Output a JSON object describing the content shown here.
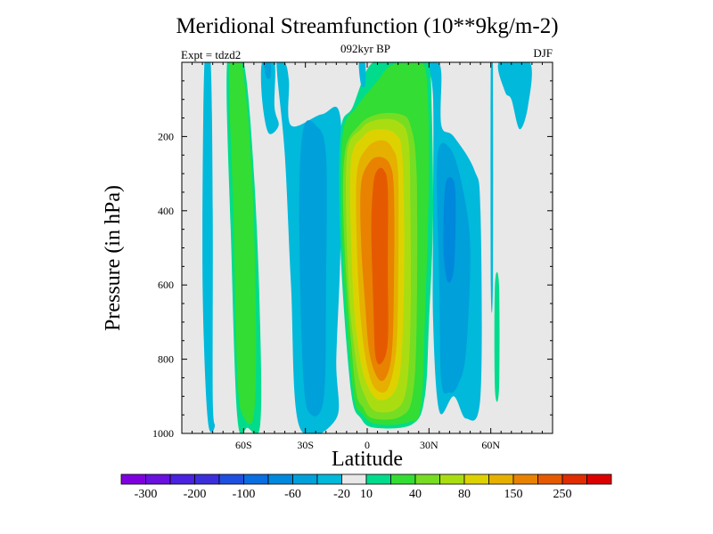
{
  "chart_data": {
    "type": "heatmap",
    "title": "Meridional Streamfunction (10**9kg/m-2)",
    "subtitle": "092kyr BP",
    "left_label": "Expt = tdzd2",
    "right_label": "DJF",
    "xlabel": "Latitude",
    "ylabel": "Pressure (in hPa)",
    "x_range": [
      -90,
      90
    ],
    "y_range": [
      0,
      1000
    ],
    "x_ticks": [
      {
        "value": -60,
        "label": "60S"
      },
      {
        "value": -30,
        "label": "30S"
      },
      {
        "value": 0,
        "label": "0"
      },
      {
        "value": 30,
        "label": "30N"
      },
      {
        "value": 60,
        "label": "60N"
      }
    ],
    "y_ticks": [
      {
        "value": 200,
        "label": "200"
      },
      {
        "value": 400,
        "label": "400"
      },
      {
        "value": 600,
        "label": "600"
      },
      {
        "value": 800,
        "label": "800"
      },
      {
        "value": 1000,
        "label": "1000"
      }
    ],
    "colorbar": {
      "colors": [
        "#7F00DF",
        "#6A11DF",
        "#4A22DF",
        "#3B2FDC",
        "#1F4FDF",
        "#0A6DE0",
        "#0088DD",
        "#00A0DA",
        "#00B9DB",
        "#E8E8E8",
        "#00DC8C",
        "#33DD33",
        "#77DD22",
        "#AADD11",
        "#DDD200",
        "#E6B000",
        "#E88200",
        "#E55A00",
        "#E02C00",
        "#DD0000"
      ],
      "labels": [
        {
          "after": 1,
          "text": "-300"
        },
        {
          "after": 3,
          "text": "-200"
        },
        {
          "after": 5,
          "text": "-100"
        },
        {
          "after": 7,
          "text": "-60"
        },
        {
          "after": 9,
          "text": "-20"
        },
        {
          "after": 10,
          "text": "10"
        },
        {
          "after": 12,
          "text": "40"
        },
        {
          "after": 14,
          "text": "80"
        },
        {
          "after": 16,
          "text": "150"
        },
        {
          "after": 18,
          "text": "250"
        }
      ]
    },
    "regions": [
      {
        "name": "background",
        "level": "-20 to 10",
        "color": "#E8E8E8",
        "lat": [
          -90,
          90
        ],
        "p": [
          0,
          1000
        ]
      },
      {
        "name": "cell-60S-westcolumn",
        "level": "-20 to -40",
        "color": "#00B9DB",
        "outline": [
          [
            -79,
            0
          ],
          [
            -76,
            0
          ],
          [
            -75,
            400
          ],
          [
            -75,
            900
          ],
          [
            -74,
            980
          ],
          [
            -77,
            980
          ],
          [
            -79,
            800
          ],
          [
            -80,
            500
          ]
        ]
      },
      {
        "name": "cell-55S-column",
        "level": "10 to 40",
        "color": "#00DC8C",
        "outline": [
          [
            -68,
            0
          ],
          [
            -60,
            0
          ],
          [
            -55,
            300
          ],
          [
            -52,
            700
          ],
          [
            -52,
            980
          ],
          [
            -58,
            985
          ],
          [
            -63,
            960
          ],
          [
            -66,
            500
          ]
        ]
      },
      {
        "name": "cell-55S-core",
        "level": "40 to 60",
        "color": "#33DD33",
        "outline": [
          [
            -67,
            0
          ],
          [
            -61,
            0
          ],
          [
            -56,
            300
          ],
          [
            -54,
            700
          ],
          [
            -55,
            950
          ],
          [
            -60,
            955
          ],
          [
            -63,
            850
          ],
          [
            -65,
            400
          ]
        ]
      },
      {
        "name": "cell-45S-column",
        "level": "-20 to -40",
        "color": "#00B9DB",
        "outline": [
          [
            -44,
            0
          ],
          [
            -40,
            0
          ],
          [
            -38,
            50
          ],
          [
            -37,
            170
          ],
          [
            -22,
            140
          ],
          [
            -13,
            150
          ],
          [
            -13,
            500
          ],
          [
            -15,
            800
          ],
          [
            -15,
            960
          ],
          [
            -33,
            980
          ],
          [
            -37,
            600
          ],
          [
            -40,
            250
          ]
        ]
      },
      {
        "name": "cell-35S-core",
        "level": "-40 to -60",
        "color": "#00A0DA",
        "outline": [
          [
            -31,
            180
          ],
          [
            -25,
            170
          ],
          [
            -20,
            250
          ],
          [
            -20,
            600
          ],
          [
            -21,
            900
          ],
          [
            -27,
            950
          ],
          [
            -31,
            850
          ],
          [
            -33,
            400
          ]
        ]
      },
      {
        "name": "cell-equator-outer",
        "level": "10 to 40",
        "color": "#00DC8C",
        "outline": [
          [
            -13,
            190
          ],
          [
            -7,
            120
          ],
          [
            1,
            10
          ],
          [
            10,
            0
          ],
          [
            30,
            0
          ],
          [
            31,
            50
          ],
          [
            32,
            400
          ],
          [
            30,
            700
          ],
          [
            28,
            900
          ],
          [
            22,
            975
          ],
          [
            4,
            985
          ],
          [
            -3,
            960
          ],
          [
            -8,
            880
          ],
          [
            -13,
            500
          ]
        ]
      },
      {
        "name": "cell-equator-40",
        "level": "40 to 60",
        "color": "#33DD33",
        "outline": [
          [
            -12,
            200
          ],
          [
            -5,
            120
          ],
          [
            5,
            50
          ],
          [
            11,
            10
          ],
          [
            20,
            0
          ],
          [
            26,
            0
          ],
          [
            29,
            50
          ],
          [
            30,
            300
          ],
          [
            28,
            700
          ],
          [
            26,
            930
          ],
          [
            20,
            970
          ],
          [
            5,
            975
          ],
          [
            -2,
            950
          ],
          [
            -7,
            880
          ],
          [
            -12,
            500
          ]
        ]
      },
      {
        "name": "cell-equator-60",
        "level": "60 to 80",
        "color": "#77DD22",
        "outline": [
          [
            -11,
            250
          ],
          [
            -4,
            170
          ],
          [
            5,
            140
          ],
          [
            16,
            140
          ],
          [
            21,
            170
          ],
          [
            24,
            300
          ],
          [
            24,
            700
          ],
          [
            22,
            900
          ],
          [
            16,
            955
          ],
          [
            3,
            960
          ],
          [
            -2,
            930
          ],
          [
            -6,
            860
          ],
          [
            -11,
            500
          ]
        ]
      },
      {
        "name": "cell-equator-80",
        "level": "80 to 100",
        "color": "#AADD11",
        "outline": [
          [
            -10,
            260
          ],
          [
            -3,
            180
          ],
          [
            5,
            155
          ],
          [
            15,
            160
          ],
          [
            20,
            210
          ],
          [
            21,
            400
          ],
          [
            21,
            700
          ],
          [
            19,
            880
          ],
          [
            14,
            935
          ],
          [
            4,
            940
          ],
          [
            -1,
            900
          ],
          [
            -5,
            820
          ],
          [
            -9,
            600
          ]
        ]
      },
      {
        "name": "cell-equator-100",
        "level": "100 to 125",
        "color": "#DDD200",
        "outline": [
          [
            -8,
            280
          ],
          [
            -2,
            200
          ],
          [
            6,
            180
          ],
          [
            14,
            195
          ],
          [
            17,
            250
          ],
          [
            18,
            500
          ],
          [
            17,
            760
          ],
          [
            14,
            880
          ],
          [
            6,
            910
          ],
          [
            0,
            870
          ],
          [
            -4,
            780
          ],
          [
            -7,
            600
          ]
        ]
      },
      {
        "name": "cell-equator-125",
        "level": "125 to 150",
        "color": "#E6B000",
        "outline": [
          [
            -5,
            300
          ],
          [
            0,
            230
          ],
          [
            7,
            210
          ],
          [
            12,
            230
          ],
          [
            15,
            300
          ],
          [
            15,
            600
          ],
          [
            14,
            780
          ],
          [
            10,
            880
          ],
          [
            4,
            880
          ],
          [
            0,
            820
          ],
          [
            -3,
            700
          ],
          [
            -5,
            500
          ]
        ]
      },
      {
        "name": "cell-equator-150",
        "level": "150 to 200",
        "color": "#E88200",
        "outline": [
          [
            -3,
            330
          ],
          [
            1,
            270
          ],
          [
            6,
            255
          ],
          [
            11,
            275
          ],
          [
            13,
            350
          ],
          [
            13,
            600
          ],
          [
            12,
            780
          ],
          [
            9,
            850
          ],
          [
            5,
            850
          ],
          [
            1,
            780
          ],
          [
            -1,
            650
          ],
          [
            -3,
            480
          ]
        ]
      },
      {
        "name": "cell-equator-200",
        "level": "200 to 250",
        "color": "#E55A00",
        "outline": [
          [
            3,
            330
          ],
          [
            5,
            290
          ],
          [
            8,
            290
          ],
          [
            10,
            340
          ],
          [
            10,
            550
          ],
          [
            10,
            750
          ],
          [
            7,
            810
          ],
          [
            4,
            790
          ],
          [
            3,
            650
          ],
          [
            2,
            450
          ]
        ]
      },
      {
        "name": "cell-north-column",
        "level": "-20 to -40",
        "color": "#00B9DB",
        "outline": [
          [
            30,
            0
          ],
          [
            34,
            0
          ],
          [
            36,
            30
          ],
          [
            36,
            170
          ],
          [
            42,
            200
          ],
          [
            52,
            290
          ],
          [
            55,
            400
          ],
          [
            55,
            900
          ],
          [
            48,
            960
          ],
          [
            42,
            900
          ],
          [
            35,
            940
          ],
          [
            32,
            700
          ],
          [
            32,
            400
          ],
          [
            32,
            100
          ]
        ]
      },
      {
        "name": "cell-north-core",
        "level": "-40 to -60",
        "color": "#00A0DA",
        "outline": [
          [
            34,
            260
          ],
          [
            40,
            230
          ],
          [
            46,
            330
          ],
          [
            50,
            500
          ],
          [
            48,
            780
          ],
          [
            44,
            870
          ],
          [
            40,
            890
          ],
          [
            36,
            860
          ],
          [
            35,
            600
          ]
        ]
      },
      {
        "name": "cell-north-inner",
        "level": "-60 to -100",
        "color": "#0088DD",
        "outline": [
          [
            38,
            330
          ],
          [
            42,
            320
          ],
          [
            43,
            400
          ],
          [
            42,
            560
          ],
          [
            39,
            590
          ],
          [
            37,
            500
          ]
        ]
      },
      {
        "name": "cell-north-high",
        "level": "-20 to -40",
        "color": "#00B9DB",
        "outline": [
          [
            64,
            0
          ],
          [
            79,
            0
          ],
          [
            78,
            120
          ],
          [
            74,
            180
          ],
          [
            70,
            100
          ],
          [
            67,
            80
          ]
        ]
      },
      {
        "name": "cell-north-strip",
        "level": "10 to 40",
        "color": "#00DC8C",
        "outline": [
          [
            62,
            600
          ],
          [
            64,
            600
          ],
          [
            64,
            880
          ],
          [
            62,
            880
          ]
        ]
      },
      {
        "name": "cell-50S-upper-west",
        "level": "-20 to -40",
        "color": "#00B9DB",
        "outline": [
          [
            -51,
            0
          ],
          [
            -45,
            0
          ],
          [
            -45,
            120
          ],
          [
            -43,
            170
          ],
          [
            -48,
            190
          ],
          [
            -51,
            100
          ]
        ]
      },
      {
        "name": "cell-50S-upper-core",
        "level": "-40 to -60",
        "color": "#00A0DA",
        "outline": [
          [
            -50,
            0
          ],
          [
            -47,
            0
          ],
          [
            -47,
            40
          ],
          [
            -49,
            40
          ]
        ]
      },
      {
        "name": "cell-5S-upper",
        "level": "-20 to -40",
        "color": "#00B9DB",
        "outline": [
          [
            -4,
            0
          ],
          [
            -1,
            0
          ],
          [
            -1,
            60
          ],
          [
            -3,
            60
          ]
        ]
      },
      {
        "name": "cell-80N-line",
        "level": "-20 to -40",
        "color": "#00B9DB",
        "outline": [
          [
            60,
            0
          ],
          [
            61,
            0
          ],
          [
            61,
            600
          ],
          [
            60,
            600
          ]
        ]
      }
    ]
  }
}
